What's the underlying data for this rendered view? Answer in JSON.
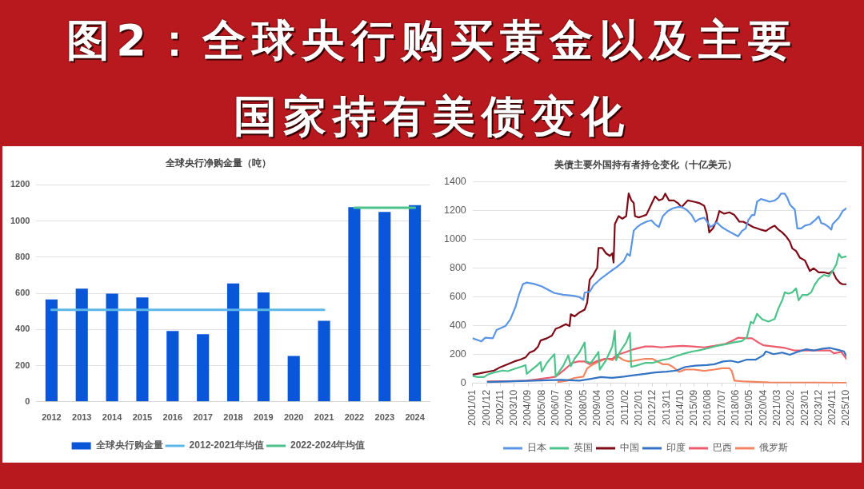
{
  "chart_data": [
    {
      "type": "other",
      "title": "图2：全球央行购买黄金以及主要国家持有美债变化"
    },
    {
      "type": "bar",
      "title": "全球央行净购金量（吨）",
      "categories": [
        "2012",
        "2013",
        "2014",
        "2015",
        "2016",
        "2017",
        "2018",
        "2019",
        "2020",
        "2021",
        "2022",
        "2023",
        "2024"
      ],
      "series": [
        {
          "name": "全球央行购金量",
          "color": "#0a56d8",
          "values": [
            566,
            626,
            598,
            577,
            391,
            374,
            655,
            605,
            253,
            448,
            1077,
            1050,
            1088
          ]
        },
        {
          "name": "2012-2021年均值",
          "type": "line",
          "color": "#5bb8e6",
          "values": [
            509,
            509,
            509,
            509,
            509,
            509,
            509,
            509,
            509,
            509,
            null,
            null,
            null
          ]
        },
        {
          "name": "2022-2024年均值",
          "type": "line",
          "color": "#4cc38a",
          "values": [
            null,
            null,
            null,
            null,
            null,
            null,
            null,
            null,
            null,
            null,
            1073,
            1073,
            1073
          ]
        }
      ],
      "ylim": [
        0,
        1200
      ],
      "yticks": [
        0,
        200,
        400,
        600,
        800,
        1000,
        1200
      ],
      "grid": "y",
      "legend": "bottom",
      "marker": "none"
    },
    {
      "type": "line",
      "title": "美债主要外国持有者持仓变化（十亿美元）",
      "series": [
        {
          "name": "日本",
          "color": "#5b95e5",
          "x": [
            "2001-01",
            "2001-08",
            "2001-11",
            "2002-05",
            "2002-08",
            "2003-03",
            "2003-07",
            "2003-11",
            "2004-02",
            "2004-05",
            "2004-08",
            "2005-02",
            "2005-08",
            "2006-02",
            "2006-06",
            "2007-01",
            "2007-09",
            "2008-02",
            "2008-05",
            "2008-06",
            "2008-10",
            "2009-01",
            "2009-07",
            "2010-02",
            "2010-08",
            "2011-01",
            "2011-04",
            "2011-06",
            "2011-09",
            "2011-12",
            "2012-03",
            "2012-07",
            "2012-11",
            "2013-02",
            "2013-05",
            "2013-08",
            "2013-12",
            "2014-04",
            "2014-08",
            "2014-11",
            "2015-03",
            "2015-07",
            "2015-10",
            "2016-01",
            "2016-05",
            "2016-08",
            "2016-10",
            "2017-01",
            "2017-03",
            "2017-07",
            "2017-12",
            "2018-04",
            "2018-08",
            "2018-11",
            "2019-02",
            "2019-04",
            "2019-07",
            "2019-09",
            "2019-11",
            "2020-02",
            "2020-06",
            "2020-09",
            "2021-01",
            "2021-04",
            "2021-06",
            "2021-09",
            "2021-11",
            "2022-01",
            "2022-03",
            "2022-05",
            "2022-07",
            "2022-10",
            "2023-01",
            "2023-05",
            "2023-09",
            "2023-12",
            "2024-02",
            "2024-05",
            "2024-08",
            "2024-10",
            "2024-11",
            "2025-02",
            "2025-04",
            "2025-07",
            "2025-10"
          ],
          "values": [
            313,
            292,
            317,
            313,
            370,
            398,
            445,
            530,
            620,
            690,
            700,
            690,
            673,
            645,
            627,
            615,
            608,
            599,
            580,
            630,
            636,
            680,
            728,
            774,
            811,
            848,
            900,
            885,
            1060,
            1087,
            1106,
            1122,
            1132,
            1104,
            1085,
            1159,
            1196,
            1215,
            1224,
            1224,
            1205,
            1169,
            1122,
            1141,
            1150,
            1113,
            1085,
            1104,
            1117,
            1085,
            1058,
            1039,
            1021,
            1058,
            1076,
            1132,
            1169,
            1169,
            1261,
            1280,
            1270,
            1261,
            1270,
            1289,
            1317,
            1317,
            1289,
            1243,
            1224,
            1206,
            1076,
            1076,
            1095,
            1104,
            1132,
            1159,
            1113,
            1104,
            1085,
            1067,
            1104,
            1132,
            1150,
            1196,
            1215
          ]
        },
        {
          "name": "英国",
          "color": "#4cc38a",
          "x": [
            "2001-01",
            "2001-05",
            "2001-10",
            "2002-01",
            "2002-06",
            "2003-01",
            "2003-05",
            "2003-10",
            "2004-03",
            "2004-07",
            "2004-08",
            "2004-12",
            "2005-04",
            "2005-07",
            "2005-08",
            "2005-12",
            "2006-04",
            "2006-06",
            "2006-07",
            "2007-01",
            "2007-05",
            "2007-07",
            "2007-10",
            "2008-02",
            "2008-06",
            "2008-07",
            "2008-11",
            "2009-05",
            "2009-06",
            "2009-11",
            "2010-04",
            "2010-06",
            "2010-07",
            "2010-10",
            "2011-03",
            "2011-06",
            "2011-07",
            "2011-11",
            "2012-06",
            "2012-12",
            "2013-07",
            "2014-01",
            "2014-07",
            "2015-02",
            "2015-08",
            "2016-03",
            "2016-09",
            "2017-03",
            "2017-10",
            "2018-04",
            "2018-11",
            "2019-03",
            "2019-06",
            "2019-08",
            "2019-11",
            "2020-03",
            "2020-08",
            "2021-01",
            "2021-04",
            "2021-07",
            "2021-09",
            "2021-12",
            "2022-03",
            "2022-06",
            "2022-08",
            "2022-11",
            "2023-03",
            "2023-06",
            "2023-09",
            "2023-12",
            "2024-04",
            "2024-08",
            "2024-11",
            "2025-02",
            "2025-04",
            "2025-06",
            "2025-10"
          ],
          "values": [
            51,
            44,
            44,
            61,
            76,
            89,
            85,
            100,
            114,
            127,
            66,
            95,
            123,
            148,
            82,
            142,
            184,
            203,
            47,
            123,
            195,
            119,
            171,
            218,
            284,
            152,
            142,
            218,
            95,
            161,
            256,
            366,
            161,
            218,
            284,
            351,
            114,
            123,
            142,
            142,
            161,
            171,
            190,
            209,
            222,
            233,
            246,
            260,
            271,
            284,
            294,
            322,
            427,
            417,
            483,
            446,
            429,
            447,
            521,
            577,
            632,
            623,
            632,
            660,
            577,
            614,
            614,
            632,
            688,
            725,
            753,
            743,
            780,
            826,
            900,
            873,
            882
          ]
        },
        {
          "name": "中国",
          "color": "#7d0a16",
          "x": [
            "2001-01",
            "2001-07",
            "2002-02",
            "2002-06",
            "2002-10",
            "2003-05",
            "2003-10",
            "2004-03",
            "2004-07",
            "2004-10",
            "2005-02",
            "2005-05",
            "2005-07",
            "2005-12",
            "2006-04",
            "2006-07",
            "2006-10",
            "2007-03",
            "2007-06",
            "2007-07",
            "2007-10",
            "2008-02",
            "2008-06",
            "2008-08",
            "2008-10",
            "2009-01",
            "2009-04",
            "2009-05",
            "2009-08",
            "2009-11",
            "2010-02",
            "2010-04",
            "2010-05",
            "2010-06",
            "2010-09",
            "2010-12",
            "2011-03",
            "2011-05",
            "2011-07",
            "2011-09",
            "2011-10",
            "2012-01",
            "2012-04",
            "2012-07",
            "2012-11",
            "2013-02",
            "2013-05",
            "2013-08",
            "2013-10",
            "2014-01",
            "2014-05",
            "2014-08",
            "2014-11",
            "2015-01",
            "2015-04",
            "2015-09",
            "2016-01",
            "2016-05",
            "2016-07",
            "2016-09",
            "2016-12",
            "2017-03",
            "2017-05",
            "2017-09",
            "2018-01",
            "2018-05",
            "2018-09",
            "2018-12",
            "2019-04",
            "2019-08",
            "2019-11",
            "2020-02",
            "2020-06",
            "2020-09",
            "2021-01",
            "2021-04",
            "2021-07",
            "2021-10",
            "2022-01",
            "2022-03",
            "2022-06",
            "2022-09",
            "2023-01",
            "2023-05",
            "2023-08",
            "2023-12",
            "2024-04",
            "2024-08",
            "2024-11",
            "2025-02",
            "2025-05",
            "2025-07",
            "2025-10"
          ],
          "values": [
            61,
            70,
            82,
            89,
            108,
            133,
            152,
            165,
            180,
            212,
            228,
            256,
            298,
            313,
            332,
            379,
            389,
            411,
            398,
            480,
            465,
            493,
            512,
            560,
            719,
            756,
            802,
            940,
            940,
            903,
            885,
            903,
            839,
            1106,
            1161,
            1143,
            1161,
            1318,
            1272,
            1253,
            1161,
            1152,
            1161,
            1170,
            1243,
            1298,
            1270,
            1280,
            1317,
            1270,
            1270,
            1252,
            1224,
            1243,
            1270,
            1261,
            1252,
            1233,
            1178,
            1048,
            1076,
            1132,
            1196,
            1178,
            1187,
            1169,
            1122,
            1122,
            1104,
            1085,
            1076,
            1067,
            1058,
            1076,
            1095,
            1067,
            1048,
            1021,
            984,
            937,
            919,
            873,
            854,
            780,
            799,
            771,
            771,
            762,
            780,
            725,
            697,
            688,
            688
          ]
        },
        {
          "name": "印度",
          "color": "#3373c4",
          "x": [
            "2002-01",
            "2003-05",
            "2005-02",
            "2006-11",
            "2008-02",
            "2008-11",
            "2009-07",
            "2010-04",
            "2011-01",
            "2011-09",
            "2012-06",
            "2013-02",
            "2013-11",
            "2014-07",
            "2015-02",
            "2015-10",
            "2016-07",
            "2017-01",
            "2017-08",
            "2018-02",
            "2018-08",
            "2019-03",
            "2019-10",
            "2020-04",
            "2020-06",
            "2020-12",
            "2021-07",
            "2022-01",
            "2022-07",
            "2023-02",
            "2023-08",
            "2024-03",
            "2024-09",
            "2025-04",
            "2025-08",
            "2025-10"
          ],
          "values": [
            9,
            13,
            19,
            25,
            19,
            32,
            44,
            38,
            47,
            57,
            66,
            76,
            82,
            89,
            114,
            123,
            127,
            133,
            152,
            157,
            146,
            165,
            165,
            195,
            222,
            203,
            214,
            199,
            218,
            237,
            228,
            241,
            246,
            231,
            222,
            190
          ]
        },
        {
          "name": "巴西",
          "color": "#ec5b6b",
          "x": [
            "2002-01",
            "2003-05",
            "2004-08",
            "2005-04",
            "2006-01",
            "2006-07",
            "2007-02",
            "2007-08",
            "2008-01",
            "2008-06",
            "2008-10",
            "2009-03",
            "2009-10",
            "2010-04",
            "2010-08",
            "2011-03",
            "2011-09",
            "2012-06",
            "2012-12",
            "2013-07",
            "2014-03",
            "2014-12",
            "2015-08",
            "2016-05",
            "2017-01",
            "2017-10",
            "2018-03",
            "2018-08",
            "2019-03",
            "2019-07",
            "2019-12",
            "2020-04",
            "2020-12",
            "2021-09",
            "2022-05",
            "2022-12",
            "2023-06",
            "2024-03",
            "2024-09",
            "2024-12",
            "2025-06",
            "2025-10"
          ],
          "values": [
            13,
            15,
            19,
            28,
            38,
            47,
            95,
            142,
            152,
            152,
            133,
            152,
            171,
            171,
            199,
            218,
            237,
            256,
            256,
            250,
            256,
            260,
            256,
            250,
            260,
            275,
            294,
            317,
            313,
            313,
            284,
            265,
            256,
            246,
            228,
            228,
            228,
            228,
            228,
            209,
            218,
            171
          ]
        },
        {
          "name": "俄罗斯",
          "color": "#f3845f",
          "x": [
            "2006-09",
            "2007-04",
            "2007-10",
            "2008-05",
            "2008-08",
            "2008-11",
            "2009-03",
            "2009-08",
            "2009-12",
            "2010-04",
            "2010-08",
            "2011-01",
            "2011-05",
            "2011-09",
            "2012-06",
            "2012-12",
            "2013-04",
            "2013-08",
            "2013-12",
            "2014-04",
            "2014-09",
            "2015-02",
            "2015-09",
            "2016-05",
            "2017-01",
            "2017-07",
            "2018-01",
            "2018-03",
            "2018-05",
            "2019-01",
            "2020-09",
            "2023-10",
            "2025-10"
          ],
          "values": [
            9,
            19,
            38,
            47,
            104,
            123,
            142,
            161,
            171,
            161,
            190,
            161,
            152,
            157,
            171,
            170,
            152,
            133,
            133,
            115,
            80,
            96,
            96,
            87,
            96,
            105,
            105,
            85,
            19,
            13,
            7,
            6,
            4
          ]
        }
      ],
      "xlim": [
        "2001-01",
        "2025-10"
      ],
      "xticks": [
        {
          "value": "2001-01",
          "label": "2001/01"
        },
        {
          "value": "2001-12",
          "label": "2001/12"
        },
        {
          "value": "2002-11",
          "label": "2002/11"
        },
        {
          "value": "2003-10",
          "label": "2003/10"
        },
        {
          "value": "2004-09",
          "label": "2004/09"
        },
        {
          "value": "2005-08",
          "label": "2005/08"
        },
        {
          "value": "2006-07",
          "label": "2006/07"
        },
        {
          "value": "2007-06",
          "label": "2007/06"
        },
        {
          "value": "2008-05",
          "label": "2008/05"
        },
        {
          "value": "2009-04",
          "label": "2009/04"
        },
        {
          "value": "2010-03",
          "label": "2010/03"
        },
        {
          "value": "2011-02",
          "label": "2011/02"
        },
        {
          "value": "2012-01",
          "label": "2012/01"
        },
        {
          "value": "2012-12",
          "label": "2012/12"
        },
        {
          "value": "2013-11",
          "label": "2013/11"
        },
        {
          "value": "2014-10",
          "label": "2014/10"
        },
        {
          "value": "2015-09",
          "label": "2015/09"
        },
        {
          "value": "2016-08",
          "label": "2016/08"
        },
        {
          "value": "2017-07",
          "label": "2017/07"
        },
        {
          "value": "2018-06",
          "label": "2018/06"
        },
        {
          "value": "2019-05",
          "label": "2019/05"
        },
        {
          "value": "2020-04",
          "label": "2020/04"
        },
        {
          "value": "2021-03",
          "label": "2021/03"
        },
        {
          "value": "2022-02",
          "label": "2022/02"
        },
        {
          "value": "2023-01",
          "label": "2023/01"
        },
        {
          "value": "2023-12",
          "label": "2023/12"
        },
        {
          "value": "2024-11",
          "label": "2024/11"
        },
        {
          "value": "2025-10",
          "label": "2025/10"
        }
      ],
      "ylim": [
        0,
        1400
      ],
      "yticks": [
        0,
        200,
        400,
        600,
        800,
        1000,
        1200,
        1400
      ],
      "grid": "y",
      "legend": "bottom",
      "marker": "none"
    }
  ]
}
